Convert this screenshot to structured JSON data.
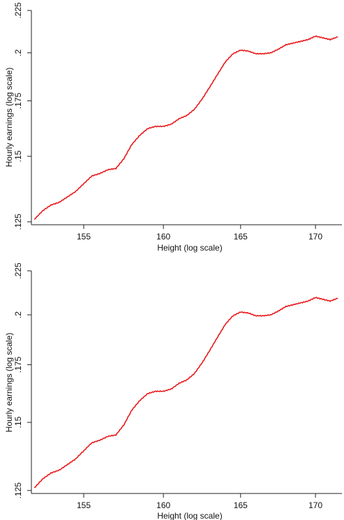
{
  "chart_data": [
    {
      "type": "line",
      "title": "",
      "xlabel": "Height (log scale)",
      "ylabel": "Hourly earnings (log scale)",
      "x_scale": "log",
      "y_scale": "log",
      "xlim": [
        151.8,
        171.8
      ],
      "ylim": [
        0.124,
        0.225
      ],
      "x_ticks": [
        155,
        160,
        165,
        170
      ],
      "y_ticks": [
        0.125,
        0.15,
        0.175,
        0.2,
        0.225
      ],
      "x_tick_labels": [
        "155",
        "160",
        "165",
        "170"
      ],
      "y_tick_labels": [
        ".125",
        ".15",
        ".175",
        ".2",
        ".225"
      ],
      "grid": false,
      "legend": "none",
      "line_color": "#e8191c",
      "series": [
        {
          "x": [
            152.0,
            152.5,
            153.0,
            153.5,
            154.0,
            154.5,
            155.0,
            155.5,
            156.0,
            156.5,
            157.0,
            157.5,
            158.0,
            158.5,
            159.0,
            159.5,
            160.0,
            160.5,
            161.0,
            161.5,
            162.0,
            162.5,
            163.0,
            163.5,
            164.0,
            164.5,
            165.0,
            165.5,
            166.0,
            166.5,
            167.0,
            167.5,
            168.0,
            168.5,
            169.0,
            169.5,
            170.0,
            170.5,
            171.0,
            171.5
          ],
          "y": [
            0.126,
            0.129,
            0.131,
            0.132,
            0.134,
            0.136,
            0.139,
            0.142,
            0.143,
            0.1445,
            0.145,
            0.149,
            0.155,
            0.159,
            0.162,
            0.163,
            0.163,
            0.164,
            0.1665,
            0.168,
            0.171,
            0.176,
            0.182,
            0.1885,
            0.195,
            0.1995,
            0.2015,
            0.201,
            0.1995,
            0.1995,
            0.2,
            0.202,
            0.2045,
            0.2055,
            0.2065,
            0.2075,
            0.2095,
            0.2085,
            0.2075,
            0.209
          ]
        }
      ]
    },
    {
      "type": "line",
      "title": "",
      "xlabel": "Height (log scale)",
      "ylabel": "Hourly earnings (log scale)",
      "x_scale": "log",
      "y_scale": "log",
      "xlim": [
        151.8,
        171.8
      ],
      "ylim": [
        0.124,
        0.225
      ],
      "x_ticks": [
        155,
        160,
        165,
        170
      ],
      "y_ticks": [
        0.125,
        0.15,
        0.175,
        0.2,
        0.225
      ],
      "x_tick_labels": [
        "155",
        "160",
        "165",
        "170"
      ],
      "y_tick_labels": [
        ".125",
        ".15",
        ".175",
        ".2",
        ".225"
      ],
      "grid": false,
      "legend": "none",
      "line_color": "#e8191c",
      "series": [
        {
          "x": [
            152.0,
            152.5,
            153.0,
            153.5,
            154.0,
            154.5,
            155.0,
            155.5,
            156.0,
            156.5,
            157.0,
            157.5,
            158.0,
            158.5,
            159.0,
            159.5,
            160.0,
            160.5,
            161.0,
            161.5,
            162.0,
            162.5,
            163.0,
            163.5,
            164.0,
            164.5,
            165.0,
            165.5,
            166.0,
            166.5,
            167.0,
            167.5,
            168.0,
            168.5,
            169.0,
            169.5,
            170.0,
            170.5,
            171.0,
            171.5
          ],
          "y": [
            0.126,
            0.129,
            0.131,
            0.132,
            0.134,
            0.136,
            0.139,
            0.142,
            0.143,
            0.1445,
            0.145,
            0.149,
            0.155,
            0.159,
            0.162,
            0.163,
            0.163,
            0.164,
            0.1665,
            0.168,
            0.171,
            0.176,
            0.182,
            0.1885,
            0.195,
            0.1995,
            0.2015,
            0.201,
            0.1995,
            0.1995,
            0.2,
            0.202,
            0.2045,
            0.2055,
            0.2065,
            0.2075,
            0.2095,
            0.2085,
            0.2075,
            0.209
          ]
        }
      ]
    }
  ]
}
